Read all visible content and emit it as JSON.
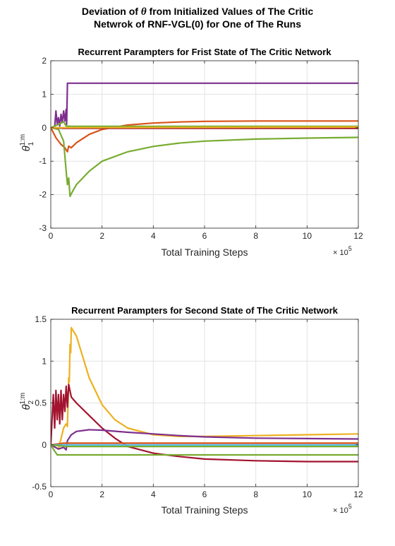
{
  "figure": {
    "title_line1_pre": "Deviation of ",
    "title_symbol": "θ",
    "title_line1_post": " from Initialized Values of The Critic",
    "title_line2": "Netwrok of RNF-VGL(0) for One of The Runs"
  },
  "chart_data": [
    {
      "type": "line",
      "title": "Recurrent Parampters for Frist State of The Critic Network",
      "xlabel": "Total Training Steps",
      "ylabel_base": "θ",
      "ylabel_sub": "1",
      "ylabel_sup": "1:m",
      "x_multiplier": "× 10",
      "x_multiplier_exp": "5",
      "xlim": [
        0,
        12
      ],
      "ylim": [
        -3,
        2
      ],
      "xticks": [
        "0",
        "2",
        "4",
        "6",
        "8",
        "10",
        "12"
      ],
      "yticks": [
        "-3",
        "-2",
        "-1",
        "0",
        "1",
        "2"
      ],
      "grid": true,
      "series": [
        {
          "color": "#7E2F8E",
          "points": [
            [
              0,
              0
            ],
            [
              0.15,
              0.02
            ],
            [
              0.2,
              0.5
            ],
            [
              0.25,
              0.1
            ],
            [
              0.3,
              0.3
            ],
            [
              0.35,
              0.05
            ],
            [
              0.4,
              0.4
            ],
            [
              0.45,
              0.15
            ],
            [
              0.5,
              0.5
            ],
            [
              0.55,
              0.2
            ],
            [
              0.6,
              0.55
            ],
            [
              0.62,
              0.1
            ],
            [
              0.65,
              1.33
            ],
            [
              12,
              1.33
            ]
          ]
        },
        {
          "color": "#D95319",
          "points": [
            [
              0,
              0
            ],
            [
              0.2,
              -0.3
            ],
            [
              0.4,
              -0.5
            ],
            [
              0.55,
              -0.6
            ],
            [
              0.65,
              -0.72
            ],
            [
              0.7,
              -0.55
            ],
            [
              0.8,
              -0.6
            ],
            [
              1.0,
              -0.45
            ],
            [
              1.5,
              -0.2
            ],
            [
              2,
              -0.05
            ],
            [
              3,
              0.08
            ],
            [
              4,
              0.14
            ],
            [
              5,
              0.17
            ],
            [
              6,
              0.19
            ],
            [
              8,
              0.2
            ],
            [
              10,
              0.2
            ],
            [
              12,
              0.2
            ]
          ]
        },
        {
          "color": "#77AC30",
          "points": [
            [
              0,
              0
            ],
            [
              0.3,
              -0.05
            ],
            [
              0.5,
              -0.4
            ],
            [
              0.6,
              -1.3
            ],
            [
              0.65,
              -1.7
            ],
            [
              0.7,
              -1.5
            ],
            [
              0.75,
              -2.05
            ],
            [
              0.85,
              -1.9
            ],
            [
              1,
              -1.7
            ],
            [
              1.5,
              -1.3
            ],
            [
              2,
              -1.0
            ],
            [
              3,
              -0.72
            ],
            [
              4,
              -0.56
            ],
            [
              5,
              -0.46
            ],
            [
              6,
              -0.4
            ],
            [
              8,
              -0.34
            ],
            [
              10,
              -0.31
            ],
            [
              12,
              -0.29
            ]
          ]
        },
        {
          "color": "#77AC30",
          "points": [
            [
              0,
              0
            ],
            [
              0.3,
              0.1
            ],
            [
              0.5,
              0.18
            ],
            [
              0.6,
              0.05
            ],
            [
              0.8,
              0.04
            ],
            [
              2,
              0.04
            ],
            [
              12,
              0.04
            ]
          ]
        },
        {
          "color": "#4DBEEE",
          "points": [
            [
              0,
              0
            ],
            [
              12,
              0
            ]
          ]
        },
        {
          "color": "#A2142F",
          "points": [
            [
              0,
              0
            ],
            [
              0.5,
              -0.02
            ],
            [
              12,
              -0.02
            ]
          ]
        },
        {
          "color": "#EDB120",
          "points": [
            [
              0,
              0
            ],
            [
              12,
              0.02
            ]
          ]
        }
      ]
    },
    {
      "type": "line",
      "title": "Recurrent Parampters for Second State of The Critic Network",
      "xlabel": "Total Training Steps",
      "ylabel_base": "θ",
      "ylabel_sub": "2",
      "ylabel_sup": "1:m",
      "x_multiplier": "× 10",
      "x_multiplier_exp": "5",
      "xlim": [
        0,
        12
      ],
      "ylim": [
        -0.5,
        1.5
      ],
      "xticks": [
        "0",
        "2",
        "4",
        "6",
        "8",
        "10",
        "12"
      ],
      "yticks": [
        "-0.5",
        "0",
        "0.5",
        "1",
        "1.5"
      ],
      "grid": true,
      "series": [
        {
          "color": "#EDB120",
          "points": [
            [
              0,
              0
            ],
            [
              0.3,
              -0.05
            ],
            [
              0.5,
              0.2
            ],
            [
              0.6,
              0.25
            ],
            [
              0.65,
              0.22
            ],
            [
              0.7,
              0.8
            ],
            [
              0.72,
              0.75
            ],
            [
              0.75,
              1.2
            ],
            [
              0.78,
              1.1
            ],
            [
              0.8,
              1.4
            ],
            [
              1,
              1.3
            ],
            [
              1.5,
              0.8
            ],
            [
              2,
              0.48
            ],
            [
              2.5,
              0.3
            ],
            [
              3,
              0.2
            ],
            [
              4,
              0.12
            ],
            [
              5,
              0.1
            ],
            [
              6,
              0.1
            ],
            [
              8,
              0.11
            ],
            [
              10,
              0.12
            ],
            [
              12,
              0.13
            ]
          ]
        },
        {
          "color": "#A2142F",
          "points": [
            [
              0,
              0
            ],
            [
              0.1,
              0.6
            ],
            [
              0.15,
              0.2
            ],
            [
              0.2,
              0.65
            ],
            [
              0.25,
              0.3
            ],
            [
              0.3,
              0.6
            ],
            [
              0.35,
              0.25
            ],
            [
              0.4,
              0.65
            ],
            [
              0.45,
              0.3
            ],
            [
              0.5,
              0.6
            ],
            [
              0.55,
              0.4
            ],
            [
              0.6,
              0.7
            ],
            [
              0.65,
              0.45
            ],
            [
              0.7,
              0.72
            ],
            [
              0.8,
              0.57
            ],
            [
              1,
              0.5
            ],
            [
              1.5,
              0.35
            ],
            [
              2,
              0.2
            ],
            [
              2.5,
              0.08
            ],
            [
              3,
              -0.02
            ],
            [
              4,
              -0.1
            ],
            [
              5,
              -0.14
            ],
            [
              6,
              -0.17
            ],
            [
              8,
              -0.19
            ],
            [
              10,
              -0.2
            ],
            [
              12,
              -0.2
            ]
          ]
        },
        {
          "color": "#7E2F8E",
          "points": [
            [
              0,
              0
            ],
            [
              0.3,
              -0.05
            ],
            [
              0.5,
              -0.03
            ],
            [
              0.6,
              -0.06
            ],
            [
              0.65,
              0.05
            ],
            [
              0.8,
              0.12
            ],
            [
              1,
              0.16
            ],
            [
              1.5,
              0.18
            ],
            [
              2,
              0.175
            ],
            [
              3,
              0.15
            ],
            [
              4,
              0.13
            ],
            [
              5,
              0.11
            ],
            [
              6,
              0.095
            ],
            [
              8,
              0.08
            ],
            [
              10,
              0.075
            ],
            [
              12,
              0.07
            ]
          ]
        },
        {
          "color": "#77AC30",
          "points": [
            [
              0,
              0
            ],
            [
              0.1,
              -0.05
            ],
            [
              0.25,
              -0.12
            ],
            [
              12,
              -0.12
            ]
          ]
        },
        {
          "color": "#D95319",
          "points": [
            [
              0,
              0
            ],
            [
              0.5,
              0.02
            ],
            [
              12,
              0.02
            ]
          ]
        },
        {
          "color": "#4DBEEE",
          "points": [
            [
              0,
              0
            ],
            [
              12,
              0
            ]
          ]
        },
        {
          "color": "#77AC30",
          "points": [
            [
              0,
              0
            ],
            [
              0.6,
              -0.02
            ],
            [
              12,
              -0.02
            ]
          ]
        }
      ]
    }
  ]
}
